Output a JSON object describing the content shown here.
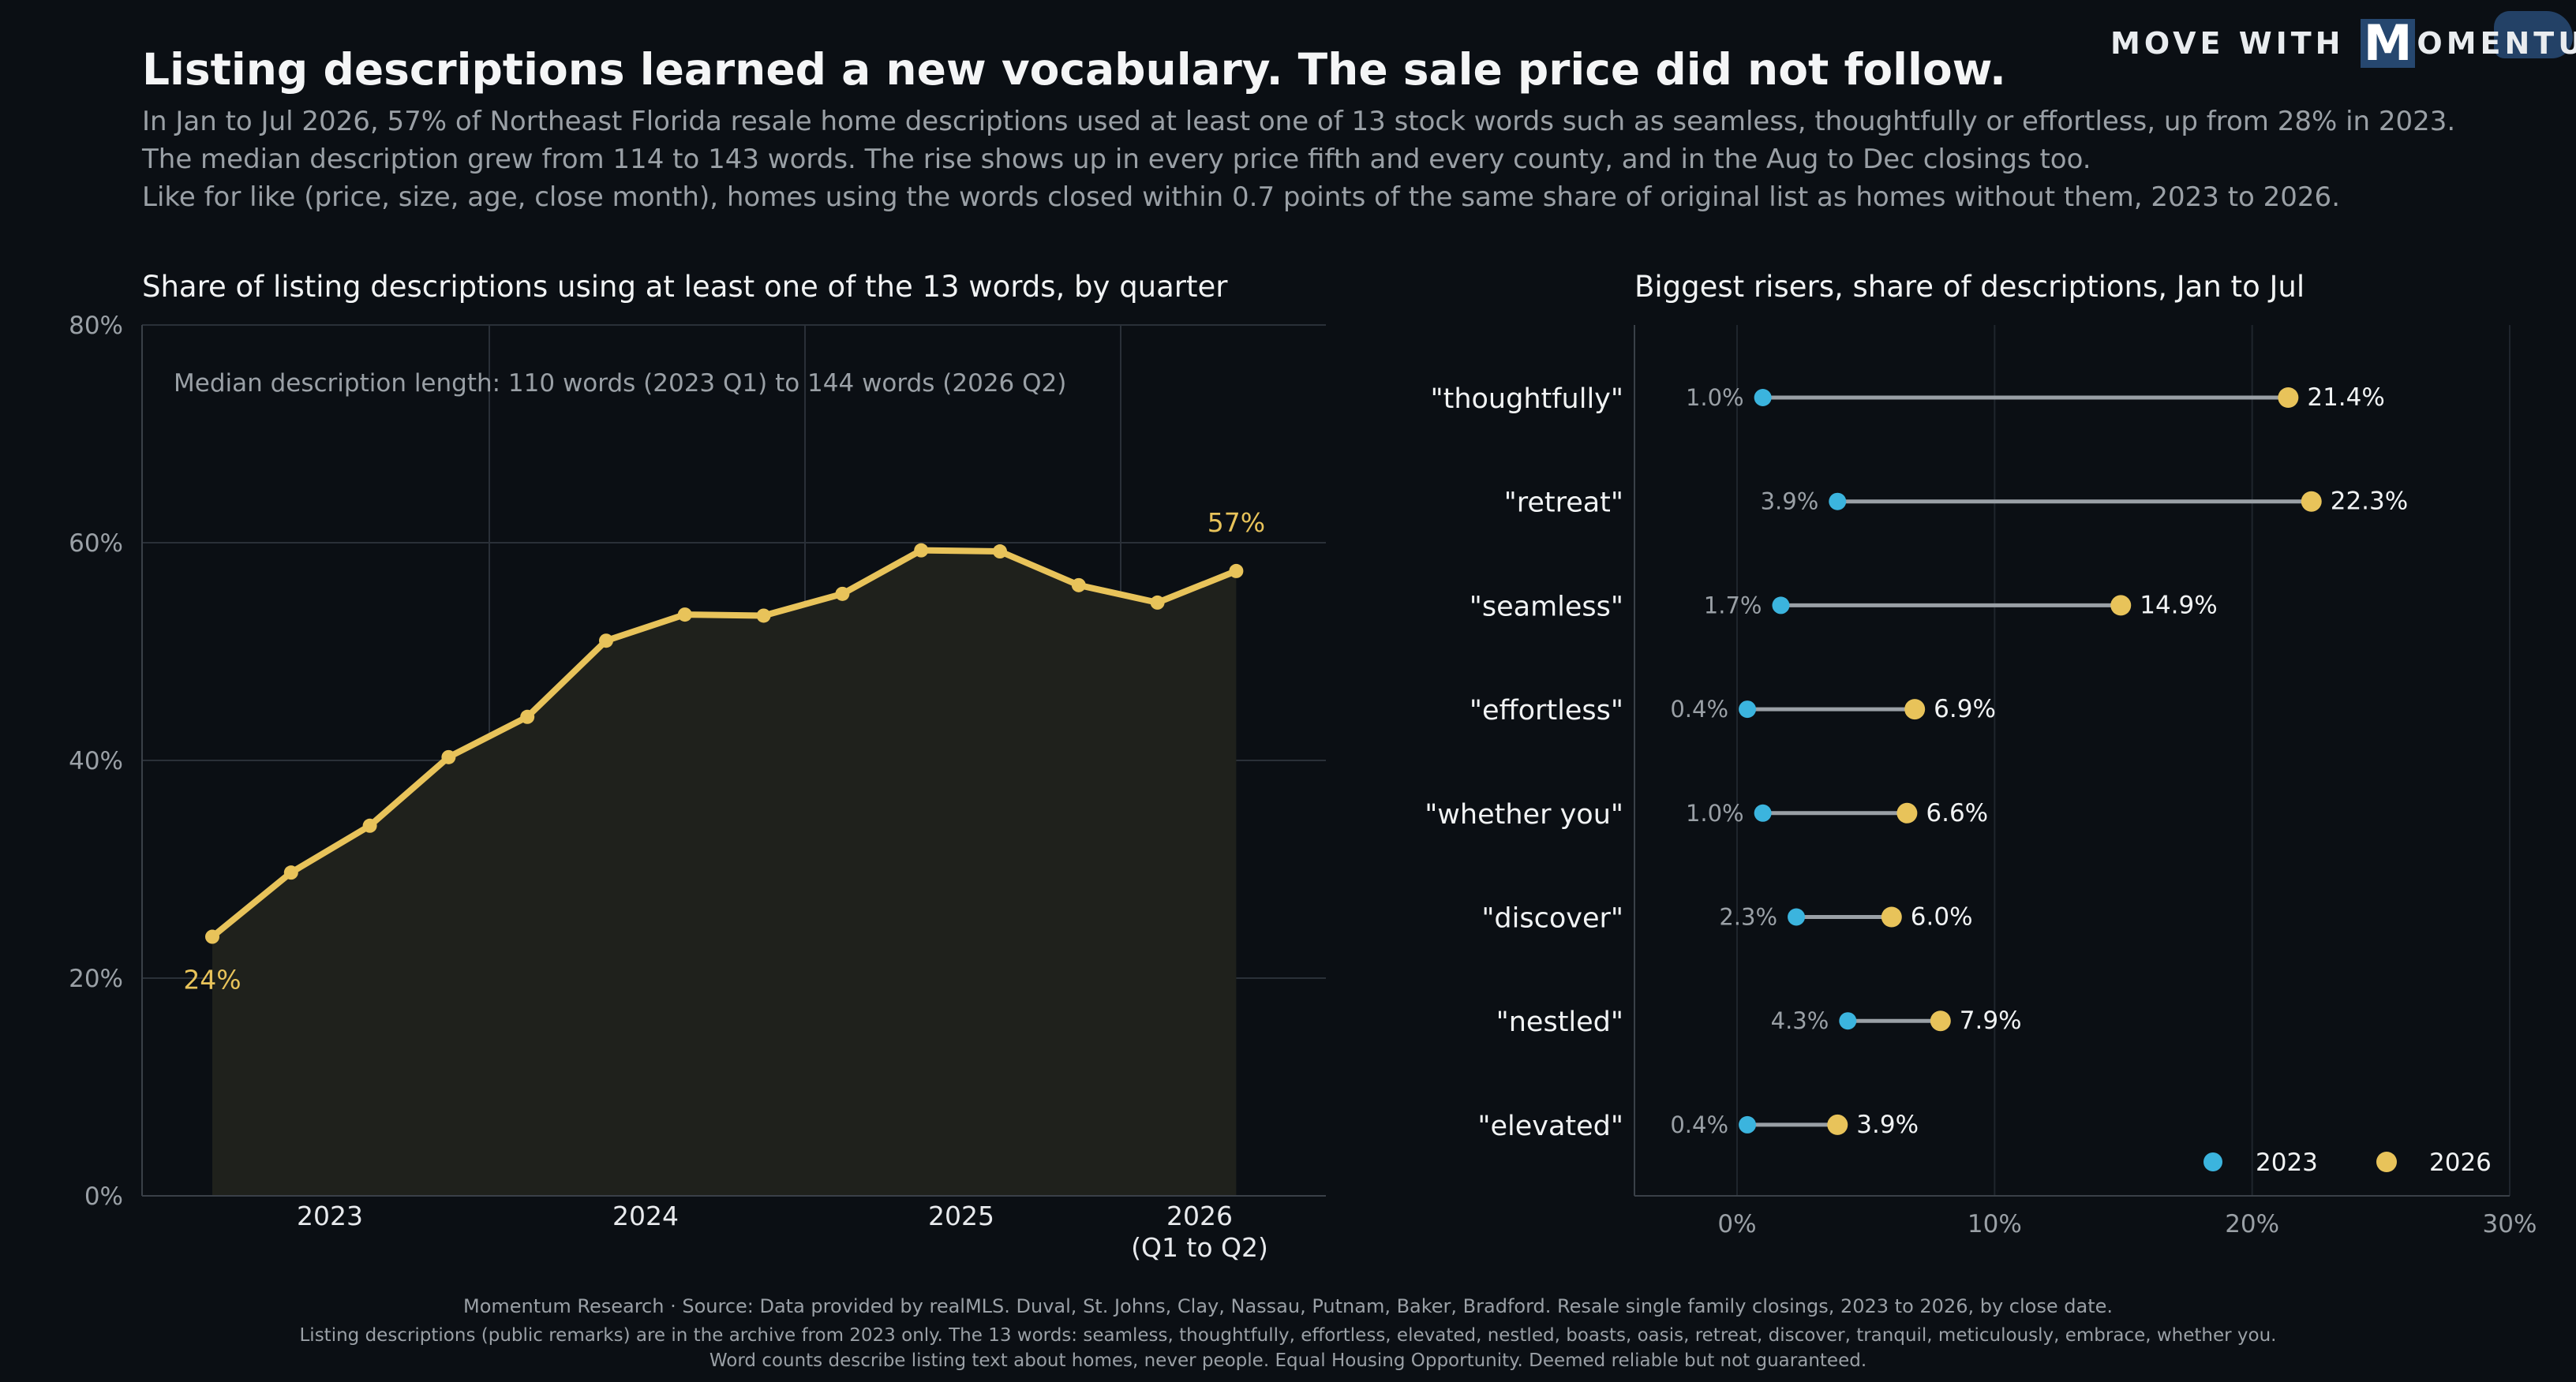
{
  "brand": {
    "text_before": "MOVE WITH",
    "text_m": "M",
    "text_after": "OMENTUM"
  },
  "header": {
    "title": "Listing descriptions learned a new vocabulary. The sale price did not follow.",
    "lines": [
      "In Jan to Jul 2026, 57% of Northeast Florida resale home descriptions used at least one of 13 stock words such as seamless, thoughtfully or effortless, up from 28% in 2023.",
      "The median description grew from 114 to 143 words. The rise shows up in every price fifth and every county, and in the Aug to Dec closings too.",
      "Like for like (price, size, age, close month), homes using the words closed within 0.7 points of the same share of original list as homes without them, 2023 to 2026."
    ]
  },
  "colors": {
    "background": "#0b0f14",
    "line": "#e8c35a",
    "area": "#1f211c",
    "dot2023": "#3bb4de",
    "dot2026": "#e8c35a",
    "connector": "#9aa0a6"
  },
  "chart_data": [
    {
      "type": "line",
      "title": "Share of listing descriptions using at least one of the 13 words, by quarter",
      "annotation": "Median description length: 110 words (2023 Q1) to 144 words (2026 Q2)",
      "x_tick_labels": [
        "2023",
        "2024",
        "2025",
        "2026\n(Q1 to Q2)"
      ],
      "y_tick_labels": [
        "0%",
        "20%",
        "40%",
        "60%",
        "80%"
      ],
      "ylim": [
        0,
        80
      ],
      "grid": true,
      "series": [
        {
          "values": [
            23.8,
            29.7,
            34.0,
            40.3,
            44.0,
            51.0,
            53.4,
            53.3,
            55.3,
            59.3,
            59.2,
            56.1,
            54.5,
            57.4
          ]
        }
      ],
      "start_label": "24%",
      "end_label": "57%"
    },
    {
      "type": "scatter",
      "title": "Biggest risers, share of descriptions, Jan to Jul",
      "xlim": [
        0,
        30
      ],
      "x_tick_labels": [
        "0%",
        "10%",
        "20%",
        "30%"
      ],
      "grid": true,
      "legend": {
        "placement": "bottom-right",
        "entries": [
          "2023",
          "2026"
        ]
      },
      "rows": [
        {
          "word": "\"thoughtfully\"",
          "v2023": 1.0,
          "v2026": 21.4,
          "l2023": "1.0%",
          "l2026": "21.4%"
        },
        {
          "word": "\"retreat\"",
          "v2023": 3.9,
          "v2026": 22.3,
          "l2023": "3.9%",
          "l2026": "22.3%"
        },
        {
          "word": "\"seamless\"",
          "v2023": 1.7,
          "v2026": 14.9,
          "l2023": "1.7%",
          "l2026": "14.9%"
        },
        {
          "word": "\"effortless\"",
          "v2023": 0.4,
          "v2026": 6.9,
          "l2023": "0.4%",
          "l2026": "6.9%"
        },
        {
          "word": "\"whether you\"",
          "v2023": 1.0,
          "v2026": 6.6,
          "l2023": "1.0%",
          "l2026": "6.6%"
        },
        {
          "word": "\"discover\"",
          "v2023": 2.3,
          "v2026": 6.0,
          "l2023": "2.3%",
          "l2026": "6.0%"
        },
        {
          "word": "\"nestled\"",
          "v2023": 4.3,
          "v2026": 7.9,
          "l2023": "4.3%",
          "l2026": "7.9%"
        },
        {
          "word": "\"elevated\"",
          "v2023": 0.4,
          "v2026": 3.9,
          "l2023": "0.4%",
          "l2026": "3.9%"
        }
      ]
    }
  ],
  "footer": {
    "line1": "Momentum Research   ·   Source: Data provided by realMLS.   Duval, St. Johns, Clay, Nassau, Putnam, Baker, Bradford.   Resale single family closings, 2023 to 2026, by close date.",
    "line2": "Listing descriptions (public remarks) are in the archive from 2023 only. The 13 words: seamless, thoughtfully, effortless, elevated, nestled, boasts, oasis, retreat, discover, tranquil, meticulously, embrace, whether you.",
    "line3": "Word counts describe listing text about homes, never people.   Equal Housing Opportunity.   Deemed reliable but not guaranteed."
  }
}
